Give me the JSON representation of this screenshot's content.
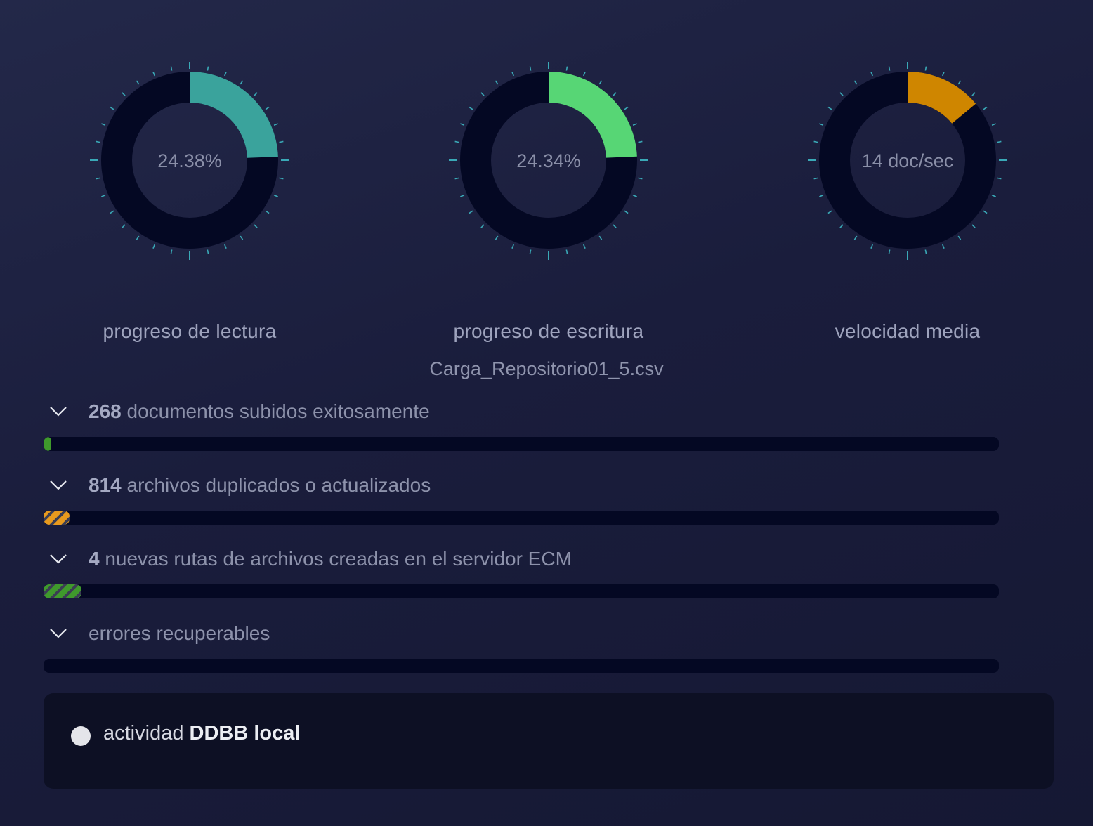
{
  "gauges": [
    {
      "id": "read",
      "value_text": "24.38%",
      "label": "progreso de lectura",
      "fraction": 0.2438,
      "color": "#3aa39c"
    },
    {
      "id": "write",
      "value_text": "24.34%",
      "label": "progreso de escritura",
      "fraction": 0.2434,
      "color": "#57d675"
    },
    {
      "id": "speed",
      "value_text": "14 doc/sec",
      "label": "velocidad media",
      "fraction": 0.14,
      "color": "#cf8600"
    }
  ],
  "file": {
    "name": "Carga_Repositorio01_5.csv"
  },
  "stats": [
    {
      "count": "268",
      "text": "documentos subidos exitosamente",
      "fraction": 0.008,
      "color": "#3f9a2c",
      "striped": false
    },
    {
      "count": "814",
      "text": "archivos duplicados o actualizados",
      "fraction": 0.027,
      "color": "#e89a1e",
      "striped": true
    },
    {
      "count": "4",
      "text": "nuevas rutas de archivos creadas en el servidor ECM",
      "fraction": 0.04,
      "color": "#3f9a2c",
      "striped": true
    },
    {
      "count": "",
      "text": "errores recuperables",
      "fraction": 0,
      "color": "#c0392b",
      "striped": false
    }
  ],
  "activity": {
    "prefix": "actividad",
    "name": "DDBB local"
  },
  "icons": {
    "chevron": "chevron-down-icon",
    "status_dot": "status-dot-icon"
  },
  "colors": {
    "track": "#040823",
    "tick": "#3aa9b7",
    "center_text": "#8a8fa8"
  }
}
